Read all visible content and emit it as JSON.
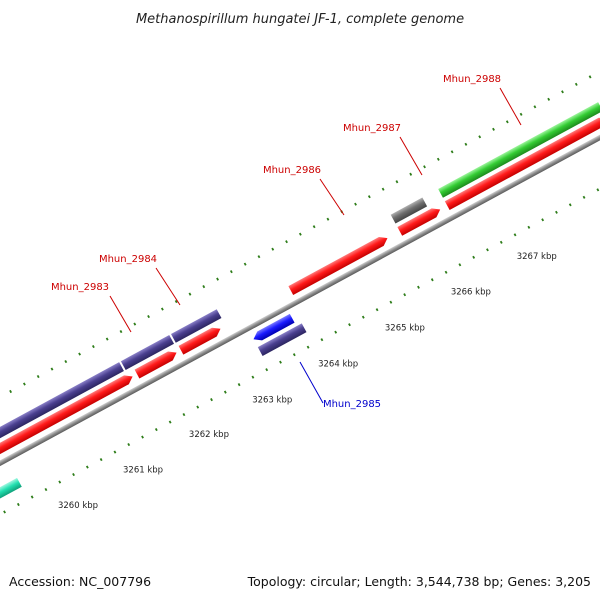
{
  "title": "Methanospirillum hungatei JF-1, complete genome",
  "footer": {
    "accession": "Accession: NC_007796",
    "summary": "Topology: circular; Length: 3,544,738 bp; Genes: 3,205"
  },
  "colors": {
    "backbone": "#8c8c8c",
    "cds": "#ff1a1a",
    "gene_navy": "#4a3f8f",
    "gene_blue": "#1a1aff",
    "gene_grey": "#6e6e6e",
    "gene_green": "#33cc33",
    "gene_teal": "#22e0b0",
    "tick": "#2e7d1a",
    "label_red": "#cc0000",
    "label_blue": "#0000cc"
  },
  "ticks": [
    {
      "label": "3260 kbp"
    },
    {
      "label": "3261 kbp"
    },
    {
      "label": "3262 kbp"
    },
    {
      "label": "3263 kbp"
    },
    {
      "label": "3264 kbp"
    },
    {
      "label": "3265 kbp"
    },
    {
      "label": "3266 kbp"
    },
    {
      "label": "3267 kbp"
    }
  ],
  "gene_labels": [
    {
      "name": "Mhun_2983",
      "color": "label_red"
    },
    {
      "name": "Mhun_2984",
      "color": "label_red"
    },
    {
      "name": "Mhun_2985",
      "color": "label_blue"
    },
    {
      "name": "Mhun_2986",
      "color": "label_red"
    },
    {
      "name": "Mhun_2987",
      "color": "label_red"
    },
    {
      "name": "Mhun_2988",
      "color": "label_red"
    }
  ]
}
